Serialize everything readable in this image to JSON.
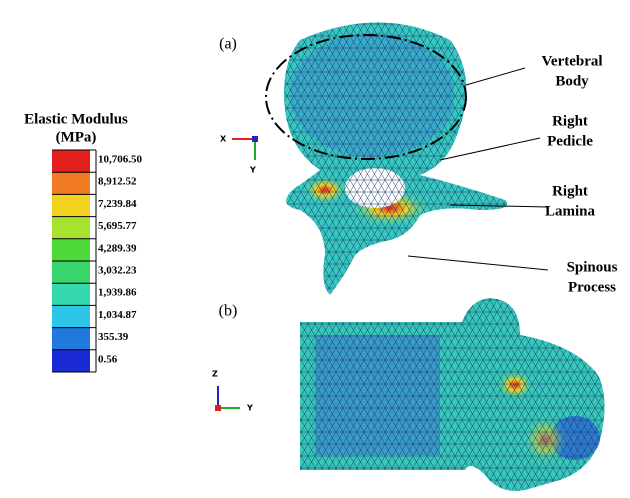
{
  "legend": {
    "title": [
      "Elastic Modulus",
      "(MPa)"
    ],
    "levels": [
      {
        "label": "10,706.50",
        "color": "#e3201b"
      },
      {
        "label": "8,912.52",
        "color": "#f07b22"
      },
      {
        "label": "7,239.84",
        "color": "#f3d21d"
      },
      {
        "label": "5,695.77",
        "color": "#a7e22c"
      },
      {
        "label": "4,289.39",
        "color": "#4fd83a"
      },
      {
        "label": "3,032.23",
        "color": "#38d46c"
      },
      {
        "label": "1,939.86",
        "color": "#35d8ad"
      },
      {
        "label": "1,034.87",
        "color": "#2ec6e6"
      },
      {
        "label": "355.39",
        "color": "#2079dc"
      },
      {
        "label": "0.56",
        "color": "#1a2bd4"
      }
    ]
  },
  "panels": [
    {
      "label": "(a)",
      "axes": [
        "X",
        "Y"
      ],
      "annotations": [
        [
          "Vertebral",
          "Body"
        ],
        [
          "Right",
          "Pedicle"
        ],
        [
          "Right",
          "Lamina"
        ],
        [
          "Spinous",
          "Process"
        ]
      ]
    },
    {
      "label": "(b)",
      "axes": [
        "Z",
        "Y"
      ]
    }
  ]
}
